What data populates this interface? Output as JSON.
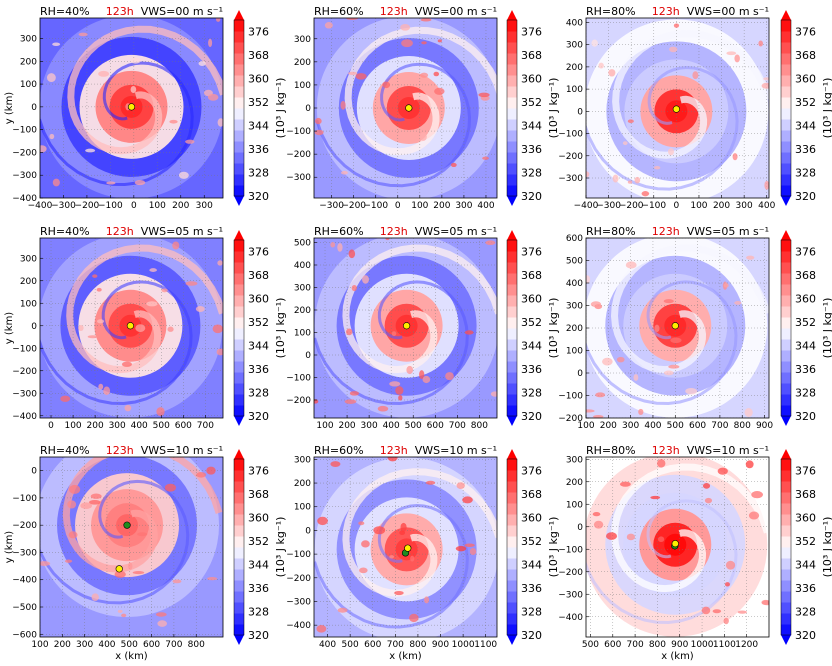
{
  "chart_data": {
    "type": "heatmap",
    "colorbar": {
      "ticks": [
        "320",
        "328",
        "336",
        "344",
        "352",
        "360",
        "368",
        "376"
      ],
      "label": "(10³ J kg⁻¹)",
      "vmin": 320,
      "vmax": 380,
      "colors": {
        "low": "#0000ff",
        "mid": "#ffffff",
        "high": "#ff0000"
      }
    },
    "common": {
      "time": "123h",
      "xlabel": "x (km)",
      "ylabel": "y (km)"
    },
    "panels": [
      {
        "id": "p11",
        "rh": "RH=40%",
        "vws": "VWS=00 m s⁻¹",
        "xticks": [
          "−400",
          "−300",
          "−200",
          "−100",
          "0",
          "100",
          "200",
          "300"
        ],
        "yticks": [
          "300",
          "200",
          "100",
          "0",
          "−100",
          "−200",
          "−300",
          "−400"
        ],
        "xlim": [
          -400,
          380
        ],
        "ylim": [
          -400,
          390
        ],
        "center": [
          -10,
          0
        ],
        "show_ylabel": true,
        "show_xlabel": false,
        "bg": 0.2,
        "core": 0.92,
        "band": 0.55,
        "spots": 0,
        "yellow": [
          -10,
          0
        ],
        "green": null
      },
      {
        "id": "p12",
        "rh": "RH=60%",
        "vws": "VWS=00 m s⁻¹",
        "xticks": [
          "−300",
          "−200",
          "−100",
          "0",
          "100",
          "200",
          "300",
          "400"
        ],
        "yticks": [
          "300",
          "200",
          "100",
          "0",
          "−100",
          "−200",
          "−300"
        ],
        "xlim": [
          -380,
          450
        ],
        "ylim": [
          -390,
          390
        ],
        "center": [
          50,
          0
        ],
        "show_ylabel": false,
        "show_xlabel": false,
        "bg": 0.3,
        "core": 0.9,
        "band": 0.45,
        "spots": 0,
        "yellow": [
          50,
          0
        ],
        "green": null
      },
      {
        "id": "p13",
        "rh": "RH=80%",
        "vws": "VWS=00 m s⁻¹",
        "xticks": [
          "−400",
          "−300",
          "−200",
          "−100",
          "0",
          "100",
          "200",
          "300",
          "400"
        ],
        "yticks": [
          "400",
          "300",
          "200",
          "100",
          "0",
          "−100",
          "−200",
          "−300"
        ],
        "xlim": [
          -400,
          410
        ],
        "ylim": [
          -390,
          420
        ],
        "center": [
          0,
          0
        ],
        "show_ylabel": false,
        "show_xlabel": false,
        "bg": 0.42,
        "core": 0.95,
        "band": 0.4,
        "spots": 1,
        "yellow": [
          0,
          10
        ],
        "green": null
      },
      {
        "id": "p21",
        "rh": "RH=40%",
        "vws": "VWS=05 m s⁻¹",
        "xticks": [
          "0",
          "100",
          "200",
          "300",
          "400",
          "500",
          "600",
          "700"
        ],
        "yticks": [
          "300",
          "200",
          "100",
          "0",
          "−100",
          "−200",
          "−300",
          "−400"
        ],
        "xlim": [
          -50,
          780
        ],
        "ylim": [
          -410,
          390
        ],
        "center": [
          360,
          0
        ],
        "show_ylabel": true,
        "show_xlabel": false,
        "bg": 0.25,
        "core": 0.9,
        "band": 0.55,
        "spots": 0,
        "yellow": [
          360,
          0
        ],
        "green": null
      },
      {
        "id": "p22",
        "rh": "RH=60%",
        "vws": "VWS=05 m s⁻¹",
        "xticks": [
          "100",
          "200",
          "300",
          "400",
          "500",
          "600",
          "700",
          "800"
        ],
        "yticks": [
          "500",
          "400",
          "300",
          "200",
          "100",
          "0",
          "−100",
          "−200"
        ],
        "xlim": [
          50,
          880
        ],
        "ylim": [
          -280,
          520
        ],
        "center": [
          470,
          130
        ],
        "show_ylabel": false,
        "show_xlabel": false,
        "bg": 0.3,
        "core": 0.9,
        "band": 0.45,
        "spots": 0,
        "yellow": [
          470,
          130
        ],
        "green": null
      },
      {
        "id": "p23",
        "rh": "RH=80%",
        "vws": "VWS=05 m s⁻¹",
        "xticks": [
          "100",
          "200",
          "300",
          "400",
          "500",
          "600",
          "700",
          "800",
          "900"
        ],
        "yticks": [
          "600",
          "500",
          "400",
          "300",
          "200",
          "100",
          "0",
          "−100",
          "−200"
        ],
        "xlim": [
          100,
          920
        ],
        "ylim": [
          -200,
          600
        ],
        "center": [
          500,
          210
        ],
        "show_ylabel": false,
        "show_xlabel": false,
        "bg": 0.42,
        "core": 0.92,
        "band": 0.4,
        "spots": 1,
        "yellow": [
          500,
          210
        ],
        "green": null
      },
      {
        "id": "p31",
        "rh": "RH=40%",
        "vws": "VWS=10 m s⁻¹",
        "xticks": [
          "100",
          "200",
          "300",
          "400",
          "500",
          "600",
          "700",
          "800"
        ],
        "yticks": [
          "0",
          "−100",
          "−200",
          "−300",
          "−400",
          "−500",
          "−600"
        ],
        "xlim": [
          100,
          920
        ],
        "ylim": [
          -610,
          50
        ],
        "center": [
          490,
          -200
        ],
        "show_ylabel": true,
        "show_xlabel": true,
        "bg": 0.3,
        "core": 0.8,
        "band": 0.6,
        "spots": 0,
        "yellow": [
          455,
          -360
        ],
        "green": [
          490,
          -200
        ]
      },
      {
        "id": "p32",
        "rh": "RH=60%",
        "vws": "VWS=10 m s⁻¹",
        "xticks": [
          "400",
          "500",
          "600",
          "700",
          "800",
          "900",
          "1000",
          "1100"
        ],
        "yticks": [
          "300",
          "200",
          "100",
          "0",
          "−100",
          "−200",
          "−300",
          "−400"
        ],
        "xlim": [
          340,
          1150
        ],
        "ylim": [
          -450,
          310
        ],
        "center": [
          750,
          -80
        ],
        "show_ylabel": false,
        "show_xlabel": true,
        "bg": 0.35,
        "core": 0.88,
        "band": 0.45,
        "spots": 0,
        "yellow": [
          755,
          -75
        ],
        "green": [
          745,
          -95
        ]
      },
      {
        "id": "p33",
        "rh": "RH=80%",
        "vws": "VWS=10 m s⁻¹",
        "xticks": [
          "500",
          "600",
          "700",
          "800",
          "900",
          "1000",
          "1100",
          "1200"
        ],
        "yticks": [
          "300",
          "200",
          "100",
          "0",
          "−100",
          "−200",
          "−300",
          "−400"
        ],
        "xlim": [
          480,
          1300
        ],
        "ylim": [
          -490,
          310
        ],
        "center": [
          880,
          -80
        ],
        "show_ylabel": false,
        "show_xlabel": true,
        "bg": 0.5,
        "core": 0.98,
        "band": 0.42,
        "spots": 2,
        "yellow": [
          880,
          -75
        ],
        "green": [
          878,
          -85
        ]
      }
    ]
  }
}
